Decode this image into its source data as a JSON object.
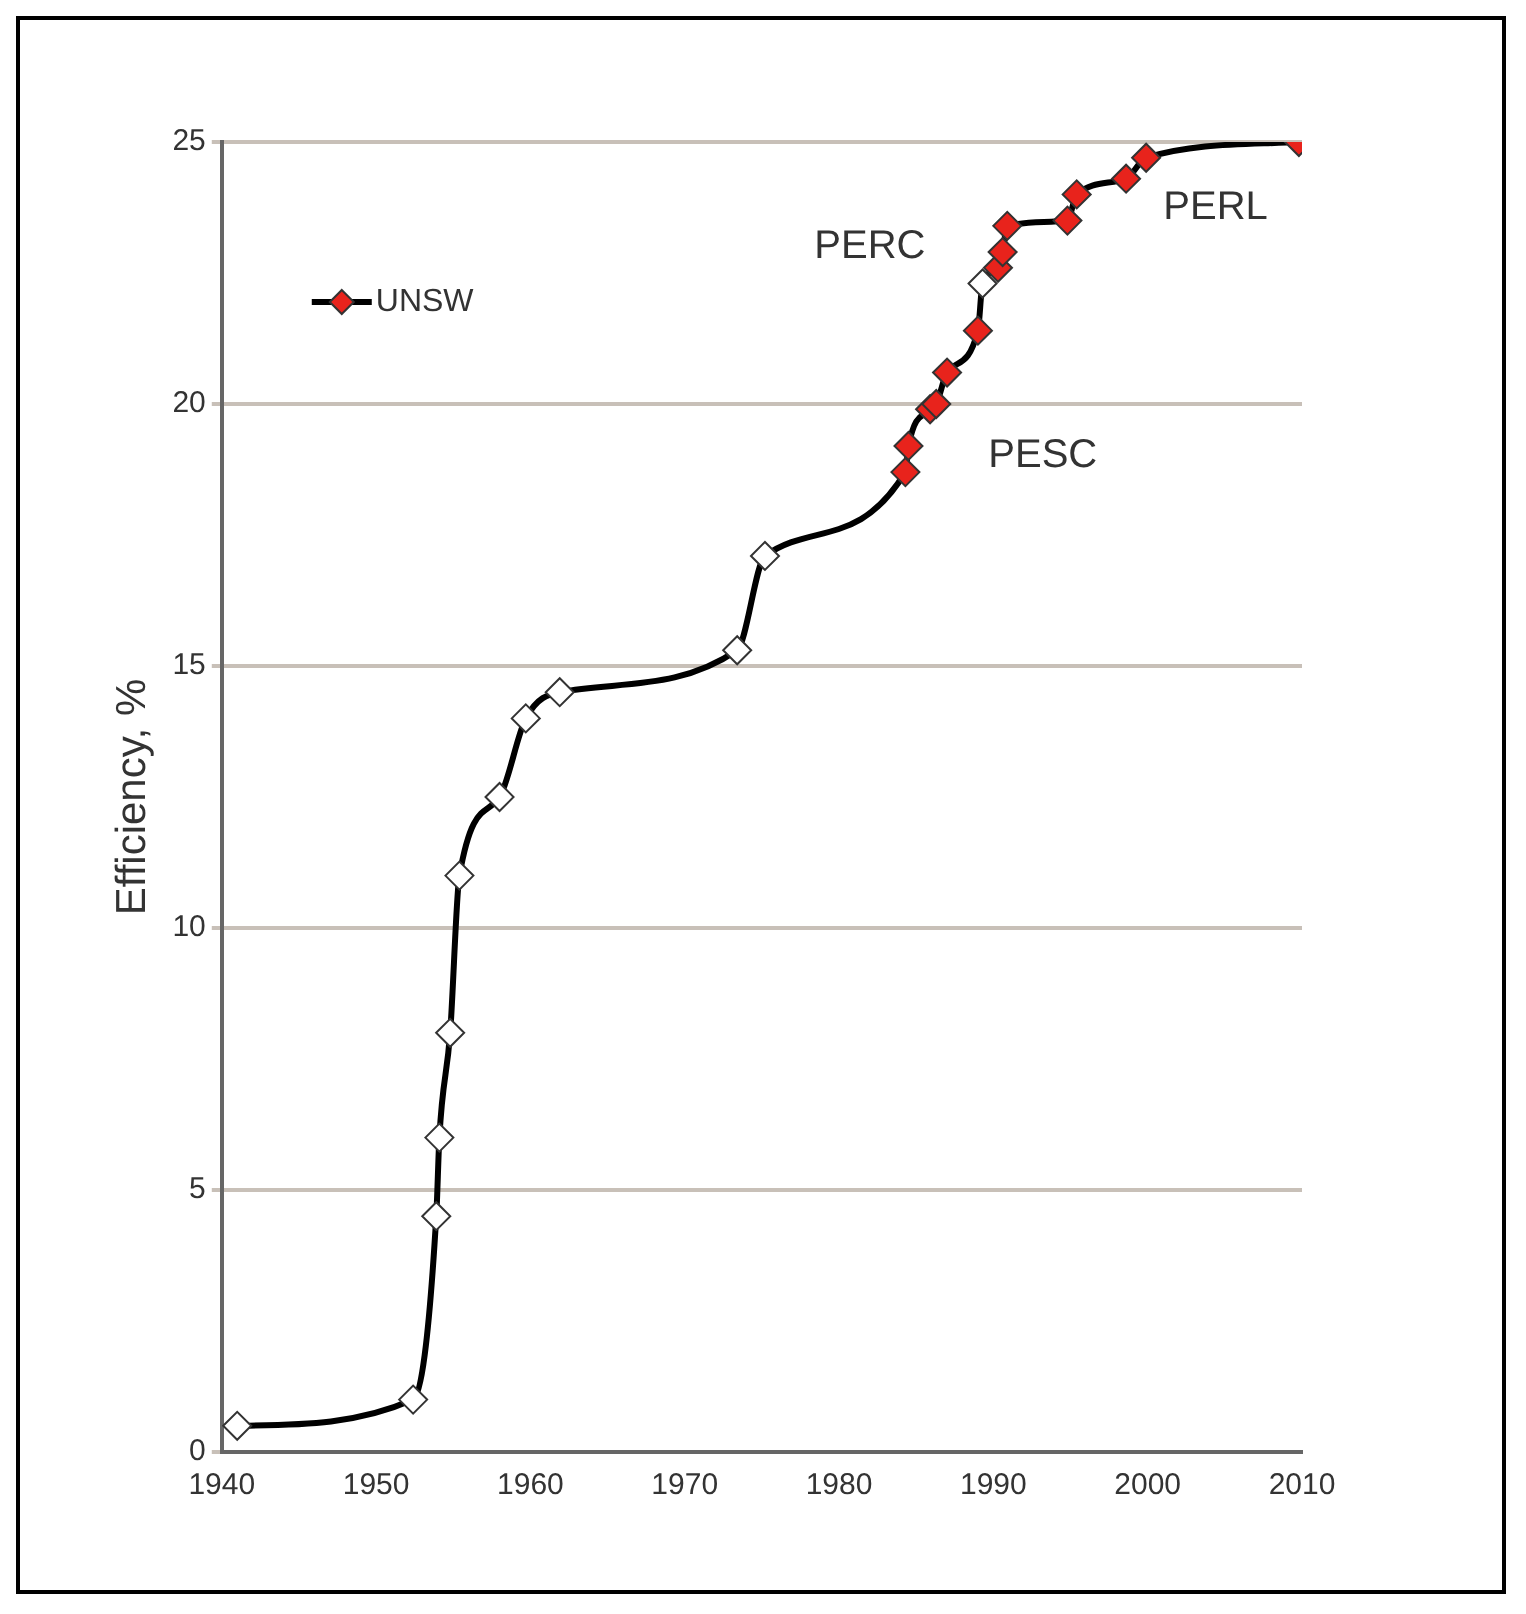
{
  "chart_data": {
    "type": "line",
    "ylabel": "Efficiency, %",
    "xlim": [
      1940,
      2010
    ],
    "xticks": [
      1940,
      1950,
      1960,
      1970,
      1980,
      1990,
      2000,
      2010
    ],
    "ylim": [
      0,
      25
    ],
    "yticks": [
      0,
      5,
      10,
      15,
      20,
      25
    ],
    "grid": "y",
    "legend": "top left",
    "series": [
      {
        "type": "line",
        "color": "#000000",
        "marker": "none",
        "x": [
          1941,
          1952.4,
          1953.9,
          1954.1,
          1954.8,
          1955.4,
          1958,
          1959.7,
          1961.9,
          1973.4,
          1975.2,
          1984.3,
          1984.5,
          1985.9,
          1986.3,
          1987,
          1989,
          1989.3,
          1990.3,
          1990.6,
          1990.9,
          1994.8,
          1995.4,
          1998.6,
          1999.9,
          2009.8
        ],
        "values": [
          0.5,
          1.0,
          4.5,
          6,
          8,
          11,
          12.5,
          14,
          14.5,
          15.3,
          17.1,
          18.7,
          19.2,
          19.9,
          20.0,
          20.6,
          21.4,
          22.3,
          22.6,
          22.9,
          23.4,
          23.5,
          24.0,
          24.3,
          24.7,
          25.0
        ]
      },
      {
        "type": "scatter",
        "color": "#ffffff",
        "marker": "diamond",
        "x": [
          1941,
          1952.4,
          1953.9,
          1954.1,
          1954.8,
          1955.4,
          1958,
          1959.7,
          1961.9,
          1973.4,
          1975.2,
          1989.3
        ],
        "values": [
          0.5,
          1.0,
          4.5,
          6,
          8,
          11,
          12.5,
          14,
          14.5,
          15.3,
          17.1,
          22.3
        ]
      },
      {
        "type": "scatter",
        "name": "UNSW",
        "color": "#e8231c",
        "marker": "diamond",
        "x": [
          1984.3,
          1984.5,
          1985.9,
          1986.3,
          1987,
          1989,
          1990.3,
          1990.6,
          1990.9,
          1994.8,
          1995.4,
          1998.6,
          1999.9,
          2009.8
        ],
        "values": [
          18.7,
          19.2,
          19.9,
          20.0,
          20.6,
          21.4,
          22.6,
          22.9,
          23.4,
          23.5,
          24.0,
          24.3,
          24.7,
          25.0
        ]
      }
    ],
    "annotations": [
      "PERC",
      "PESC",
      "PERL"
    ]
  }
}
